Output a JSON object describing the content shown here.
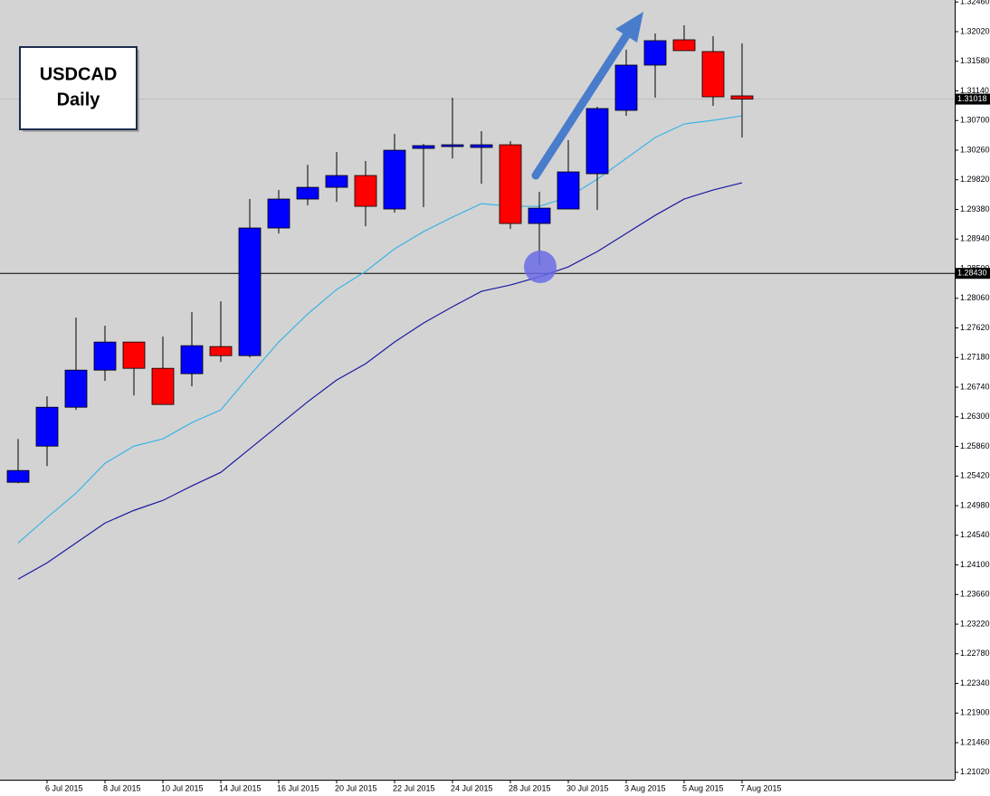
{
  "chart_data": {
    "type": "candlestick",
    "title": "USDCAD",
    "subtitle": "Daily",
    "categories": [
      null,
      "6 Jul 2015",
      null,
      "8 Jul 2015",
      null,
      "10 Jul 2015",
      null,
      "14 Jul 2015",
      null,
      "16 Jul 2015",
      null,
      "20 Jul 2015",
      null,
      "22 Jul 2015",
      null,
      "24 Jul 2015",
      null,
      "28 Jul 2015",
      null,
      "30 Jul 2015",
      null,
      "3 Aug 2015",
      null,
      "5 Aug 2015",
      null,
      "7 Aug 2015"
    ],
    "open": [
      1.25327,
      1.25864,
      1.26442,
      1.26993,
      1.2741,
      1.2702,
      1.2694,
      1.27343,
      1.27208,
      1.29104,
      1.29534,
      1.29708,
      1.29883,
      1.29386,
      1.30286,
      1.30327,
      1.303,
      1.3034,
      1.29171,
      1.29386,
      1.2991,
      1.30851,
      1.31523,
      1.31899,
      1.31724,
      1.31066
    ],
    "high": [
      1.25972,
      1.26604,
      1.27773,
      1.27652,
      1.2741,
      1.27491,
      1.27854,
      1.28015,
      1.29534,
      1.29668,
      1.30044,
      1.30232,
      1.30098,
      1.30501,
      1.30353,
      1.31039,
      1.30542,
      1.30394,
      1.29641,
      1.30407,
      1.30904,
      1.31751,
      1.31993,
      1.32114,
      1.31953,
      1.31845
    ],
    "low": [
      1.25313,
      1.25569,
      1.26402,
      1.26832,
      1.26617,
      1.26483,
      1.26752,
      1.27114,
      1.27182,
      1.29023,
      1.2944,
      1.29493,
      1.2913,
      1.29332,
      1.29413,
      1.30138,
      1.29762,
      1.2909,
      1.28552,
      1.29386,
      1.29372,
      1.3077,
      1.31039,
      1.31738,
      1.30918,
      1.30448
    ],
    "close": [
      1.25502,
      1.26442,
      1.26993,
      1.2741,
      1.2702,
      1.26483,
      1.27356,
      1.27208,
      1.29104,
      1.29534,
      1.29708,
      1.29883,
      1.29426,
      1.30259,
      1.30327,
      1.3034,
      1.3034,
      1.29171,
      1.29399,
      1.29937,
      1.30878,
      1.31523,
      1.31886,
      1.31738,
      1.31052,
      1.31018
    ],
    "up_color": "#0000ff",
    "down_color": "#ff0000",
    "moving_averages": [
      {
        "color": "#3cb4e6",
        "values": [
          1.24426,
          1.24803,
          1.25166,
          1.25609,
          1.25864,
          1.25972,
          1.26214,
          1.26402,
          1.26913,
          1.2741,
          1.27827,
          1.2819,
          1.28458,
          1.28794,
          1.2905,
          1.29265,
          1.29466,
          1.29426,
          1.29426,
          1.2956,
          1.29829,
          1.30138,
          1.30448,
          1.30649,
          1.30703,
          1.3077
        ]
      },
      {
        "color": "#1a1aa0",
        "values": [
          1.23889,
          1.24131,
          1.24426,
          1.24722,
          1.2491,
          1.25058,
          1.25273,
          1.25475,
          1.25824,
          1.26174,
          1.26523,
          1.26846,
          1.27088,
          1.2741,
          1.27692,
          1.27934,
          1.28163,
          1.28257,
          1.28378,
          1.28526,
          1.28754,
          1.29023,
          1.29292,
          1.29534,
          1.29668,
          1.29776
        ]
      }
    ],
    "ylim": [
      1.2091,
      1.3249
    ],
    "yticks": [
      {
        "value": 1.2102,
        "label": "1.21020"
      },
      {
        "value": 1.2146,
        "label": "1.21460"
      },
      {
        "value": 1.219,
        "label": "1.21900"
      },
      {
        "value": 1.2234,
        "label": "1.22340"
      },
      {
        "value": 1.2278,
        "label": "1.22780"
      },
      {
        "value": 1.2322,
        "label": "1.23220"
      },
      {
        "value": 1.2366,
        "label": "1.23660"
      },
      {
        "value": 1.241,
        "label": "1.24100"
      },
      {
        "value": 1.2454,
        "label": "1.24540"
      },
      {
        "value": 1.2498,
        "label": "1.24980"
      },
      {
        "value": 1.2542,
        "label": "1.25420"
      },
      {
        "value": 1.2586,
        "label": "1.25860"
      },
      {
        "value": 1.263,
        "label": "1.26300"
      },
      {
        "value": 1.2674,
        "label": "1.26740"
      },
      {
        "value": 1.2718,
        "label": "1.27180"
      },
      {
        "value": 1.2762,
        "label": "1.27620"
      },
      {
        "value": 1.2806,
        "label": "1.28060"
      },
      {
        "value": 1.285,
        "label": "1.28500"
      },
      {
        "value": 1.2894,
        "label": "1.28940"
      },
      {
        "value": 1.2938,
        "label": "1.29380"
      },
      {
        "value": 1.2982,
        "label": "1.29820"
      },
      {
        "value": 1.3026,
        "label": "1.30260"
      },
      {
        "value": 1.307,
        "label": "1.30700"
      },
      {
        "value": 1.3114,
        "label": "1.31140"
      },
      {
        "value": 1.3158,
        "label": "1.31580"
      },
      {
        "value": 1.3202,
        "label": "1.32020"
      },
      {
        "value": 1.3246,
        "label": "1.32460"
      }
    ],
    "hline": {
      "value": 1.2843,
      "label": "1.28430"
    },
    "last_price": {
      "value": 1.31018,
      "label": "1.31018"
    }
  }
}
